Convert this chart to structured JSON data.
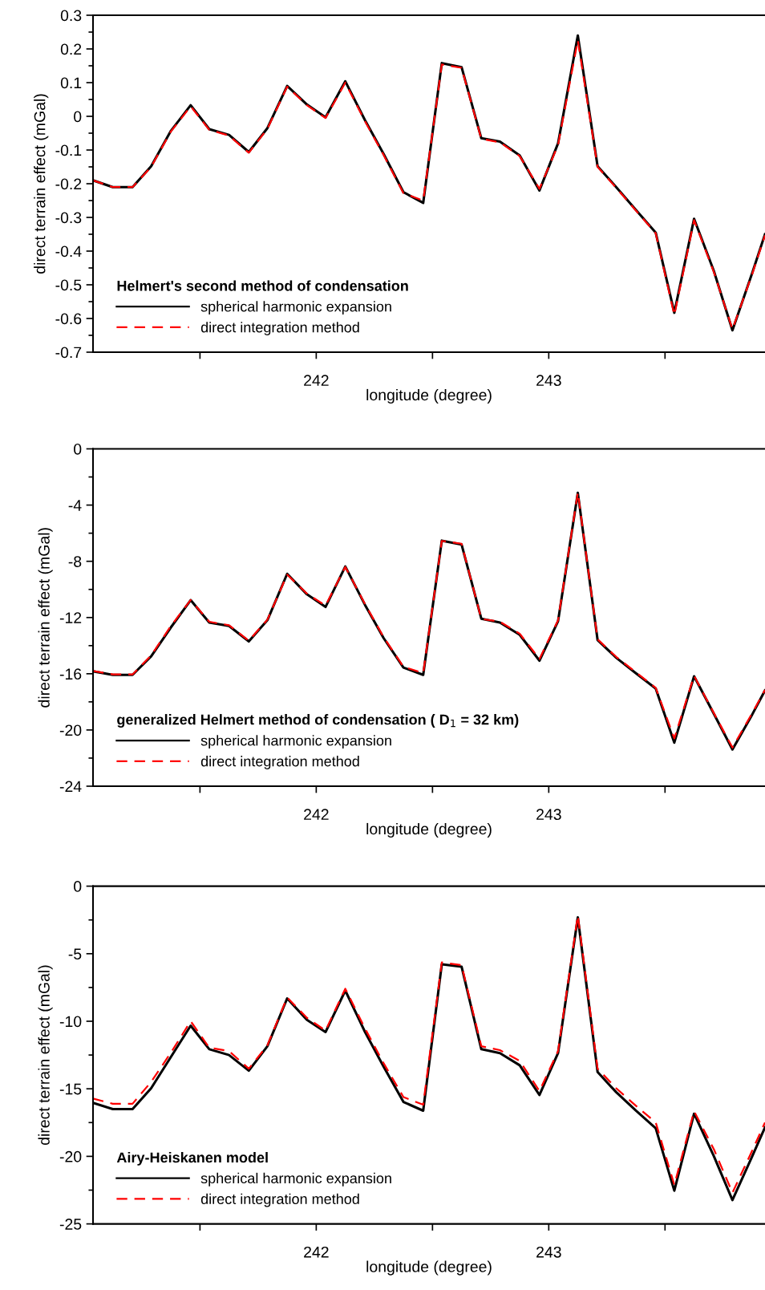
{
  "chart_data": [
    {
      "type": "line",
      "xlabel": "longitude (degree)",
      "ylabel": "direct terrain effect (mGal)",
      "legend_title": "Helmert's second method of condensation",
      "legend": "bottom left",
      "x": [
        241.04,
        241.125,
        241.21,
        241.29,
        241.375,
        241.46,
        241.54,
        241.625,
        241.71,
        241.79,
        241.875,
        241.96,
        242.04,
        242.125,
        242.21,
        242.29,
        242.375,
        242.46,
        242.54,
        242.625,
        242.71,
        242.79,
        242.875,
        242.96,
        243.04,
        243.125,
        243.21,
        243.29,
        243.375,
        243.46,
        243.54,
        243.625,
        243.71,
        243.79,
        243.875,
        243.93
      ],
      "xlim": [
        241.04,
        243.93
      ],
      "xticks": [
        {
          "value": 241.5,
          "label": null
        },
        242,
        {
          "value": 242.5,
          "label": null
        },
        243,
        {
          "value": 243.5,
          "label": null
        }
      ],
      "ylim": [
        -0.7,
        0.3
      ],
      "yticks": [
        -0.7,
        {
          "value": -0.65,
          "label": null
        },
        -0.6,
        {
          "value": -0.55,
          "label": null
        },
        -0.5,
        {
          "value": -0.45,
          "label": null
        },
        -0.4,
        {
          "value": -0.35,
          "label": null
        },
        -0.3,
        {
          "value": -0.25,
          "label": null
        },
        -0.2,
        {
          "value": -0.15,
          "label": null
        },
        -0.1,
        {
          "value": -0.05,
          "label": null
        },
        0,
        {
          "value": 0.05,
          "label": null
        },
        0.1,
        {
          "value": 0.15,
          "label": null
        },
        0.2,
        {
          "value": 0.25,
          "label": null
        },
        0.3
      ],
      "series": [
        {
          "name": "spherical harmonic expansion",
          "color": "#000000",
          "line_style": "solid",
          "values": [
            -0.19,
            -0.21,
            -0.21,
            -0.148,
            -0.043,
            0.033,
            -0.038,
            -0.055,
            -0.106,
            -0.035,
            0.09,
            0.035,
            -0.003,
            0.104,
            -0.012,
            -0.112,
            -0.225,
            -0.257,
            0.158,
            0.146,
            -0.065,
            -0.075,
            -0.116,
            -0.22,
            -0.08,
            0.24,
            -0.148,
            -0.21,
            -0.278,
            -0.345,
            -0.583,
            -0.304,
            -0.459,
            -0.635,
            -0.465,
            -0.35
          ]
        },
        {
          "name": "direct integration method",
          "color": "#ff0000",
          "line_style": "dashed",
          "values": [
            -0.19,
            -0.21,
            -0.21,
            -0.15,
            -0.045,
            0.03,
            -0.04,
            -0.057,
            -0.108,
            -0.037,
            0.088,
            0.033,
            -0.005,
            0.1,
            -0.015,
            -0.115,
            -0.228,
            -0.25,
            0.154,
            0.144,
            -0.067,
            -0.077,
            -0.118,
            -0.215,
            -0.085,
            0.226,
            -0.15,
            -0.212,
            -0.28,
            -0.347,
            -0.59,
            -0.308,
            -0.462,
            -0.632,
            -0.468,
            -0.353
          ]
        }
      ]
    },
    {
      "type": "line",
      "xlabel": "longitude (degree)",
      "ylabel": "direct terrain effect (mGal)",
      "legend_title": "generalized Helmert method of condensation ( D$_{1}$ = 32 km)",
      "legend": "bottom left",
      "x": [
        241.04,
        241.125,
        241.21,
        241.29,
        241.375,
        241.46,
        241.54,
        241.625,
        241.71,
        241.79,
        241.875,
        241.96,
        242.04,
        242.125,
        242.21,
        242.29,
        242.375,
        242.46,
        242.54,
        242.625,
        242.71,
        242.79,
        242.875,
        242.96,
        243.04,
        243.125,
        243.21,
        243.29,
        243.375,
        243.46,
        243.54,
        243.625,
        243.71,
        243.79,
        243.875,
        243.93
      ],
      "xlim": [
        241.04,
        243.93
      ],
      "xticks": [
        {
          "value": 241.5,
          "label": null
        },
        242,
        {
          "value": 242.5,
          "label": null
        },
        243,
        {
          "value": 243.5,
          "label": null
        }
      ],
      "ylim": [
        -24,
        0
      ],
      "yticks": [
        -24,
        {
          "value": -22,
          "label": null
        },
        -20,
        {
          "value": -18,
          "label": null
        },
        -16,
        {
          "value": -14,
          "label": null
        },
        -12,
        {
          "value": -10,
          "label": null
        },
        -8,
        {
          "value": -6,
          "label": null
        },
        -4,
        {
          "value": -2,
          "label": null
        },
        0
      ],
      "series": [
        {
          "name": "spherical harmonic expansion",
          "color": "#000000",
          "line_style": "solid",
          "values": [
            -15.83,
            -16.08,
            -16.08,
            -14.76,
            -12.7,
            -10.76,
            -12.36,
            -12.6,
            -13.7,
            -12.19,
            -8.89,
            -10.35,
            -11.25,
            -8.37,
            -11.11,
            -13.47,
            -15.56,
            -16.08,
            -6.53,
            -6.8,
            -12.08,
            -12.36,
            -13.23,
            -15.07,
            -12.26,
            -3.13,
            -13.6,
            -14.86,
            -15.97,
            -17.05,
            -20.9,
            -16.18,
            -18.85,
            -21.39,
            -18.9,
            -17.19
          ]
        },
        {
          "name": "direct integration method",
          "color": "#ff0000",
          "line_style": "dashed",
          "values": [
            -15.8,
            -16.05,
            -16.05,
            -14.7,
            -12.6,
            -10.75,
            -12.3,
            -12.55,
            -13.65,
            -12.15,
            -8.95,
            -10.3,
            -11.15,
            -8.4,
            -11.05,
            -13.4,
            -15.5,
            -15.95,
            -6.55,
            -6.75,
            -12.1,
            -12.3,
            -13.15,
            -14.95,
            -12.2,
            -3.1,
            -13.55,
            -14.8,
            -15.9,
            -17.0,
            -20.6,
            -16.15,
            -18.8,
            -21.25,
            -18.8,
            -17.15
          ]
        }
      ]
    },
    {
      "type": "line",
      "xlabel": "longitude (degree)",
      "ylabel": "direct terrain effect (mGal)",
      "legend_title": "Airy-Heiskanen model",
      "legend": "bottom left",
      "x": [
        241.04,
        241.125,
        241.21,
        241.29,
        241.375,
        241.46,
        241.54,
        241.625,
        241.71,
        241.79,
        241.875,
        241.96,
        242.04,
        242.125,
        242.21,
        242.29,
        242.375,
        242.46,
        242.54,
        242.625,
        242.71,
        242.79,
        242.875,
        242.96,
        243.04,
        243.125,
        243.21,
        243.29,
        243.375,
        243.46,
        243.54,
        243.625,
        243.71,
        243.79,
        243.875,
        243.93
      ],
      "xlim": [
        241.04,
        243.93
      ],
      "xticks": [
        {
          "value": 241.5,
          "label": null
        },
        242,
        {
          "value": 242.5,
          "label": null
        },
        243,
        {
          "value": 243.5,
          "label": null
        }
      ],
      "ylim": [
        -25,
        0
      ],
      "yticks": [
        -25,
        {
          "value": -22.5,
          "label": null
        },
        -20,
        {
          "value": -17.5,
          "label": null
        },
        -15,
        {
          "value": -12.5,
          "label": null
        },
        -10,
        {
          "value": -7.5,
          "label": null
        },
        -5,
        {
          "value": -2.5,
          "label": null
        },
        0
      ],
      "series": [
        {
          "name": "spherical harmonic expansion",
          "color": "#000000",
          "line_style": "solid",
          "values": [
            -16.04,
            -16.5,
            -16.5,
            -14.96,
            -12.64,
            -10.33,
            -12.07,
            -12.5,
            -13.66,
            -11.85,
            -8.31,
            -9.9,
            -10.8,
            -7.73,
            -10.8,
            -13.37,
            -15.97,
            -16.62,
            -5.78,
            -5.96,
            -12.07,
            -12.36,
            -13.26,
            -15.46,
            -12.36,
            -2.31,
            -13.76,
            -15.25,
            -16.62,
            -17.92,
            -22.54,
            -16.84,
            -19.98,
            -23.23,
            -20.0,
            -17.85
          ]
        },
        {
          "name": "direct integration method",
          "color": "#ff0000",
          "line_style": "dashed",
          "values": [
            -15.72,
            -16.11,
            -16.11,
            -14.49,
            -12.32,
            -10.0,
            -11.96,
            -12.21,
            -13.51,
            -11.78,
            -8.24,
            -9.75,
            -10.69,
            -7.59,
            -10.55,
            -13.11,
            -15.61,
            -16.18,
            -5.64,
            -5.85,
            -11.85,
            -12.14,
            -12.93,
            -15.17,
            -12.21,
            -2.17,
            -13.51,
            -14.96,
            -16.26,
            -17.49,
            -22.11,
            -16.66,
            -19.47,
            -22.69,
            -19.58,
            -17.49
          ]
        }
      ]
    }
  ]
}
